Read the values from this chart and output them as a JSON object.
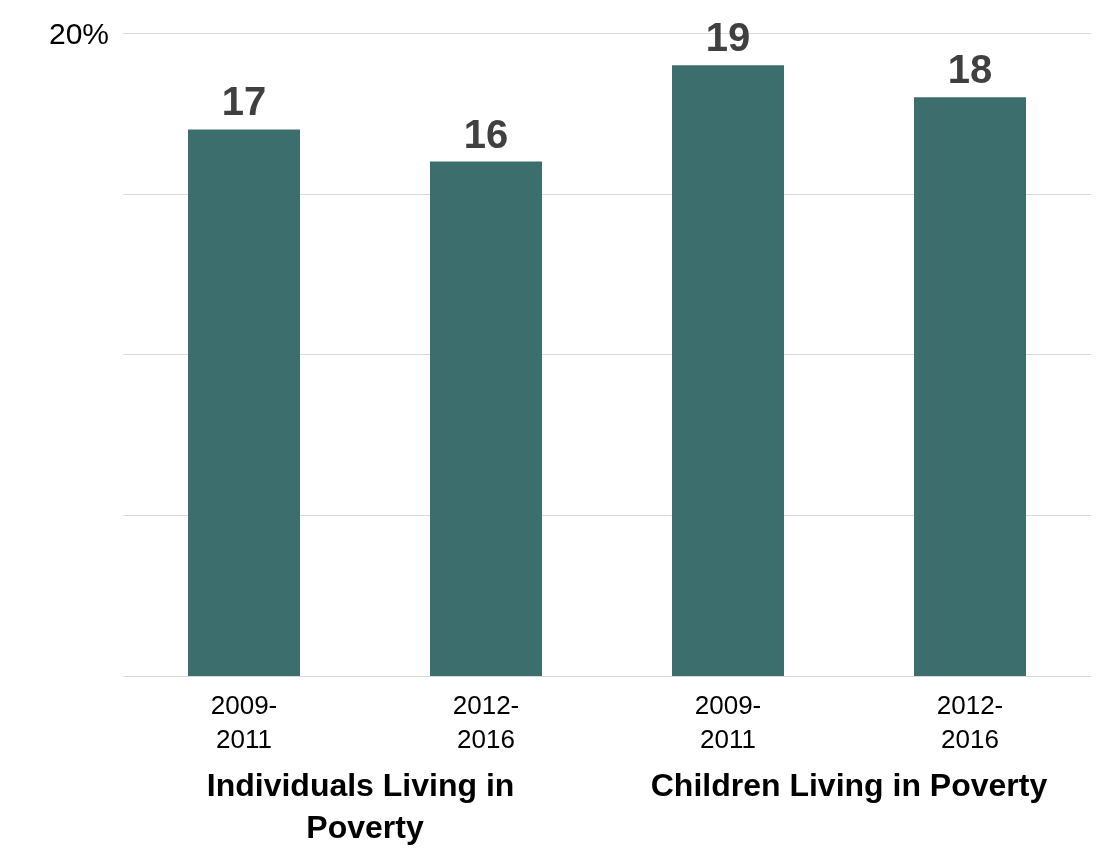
{
  "chart_data": {
    "type": "bar",
    "categories": [
      "2009-2011",
      "2012-2016",
      "2009-2011",
      "2012-2016"
    ],
    "values": [
      17,
      16,
      19,
      18
    ],
    "color": "#3d6e6e",
    "data_labels": true,
    "ylim": [
      0,
      20
    ],
    "yticks": [
      {
        "value": 0,
        "label": null
      },
      {
        "value": 5,
        "label": null
      },
      {
        "value": 10,
        "label": null
      },
      {
        "value": 15,
        "label": null
      },
      {
        "value": 20,
        "label": "20%"
      }
    ],
    "grid": "y",
    "annotations": [
      "Individuals Living in Poverty",
      "Children Living in Poverty"
    ]
  }
}
